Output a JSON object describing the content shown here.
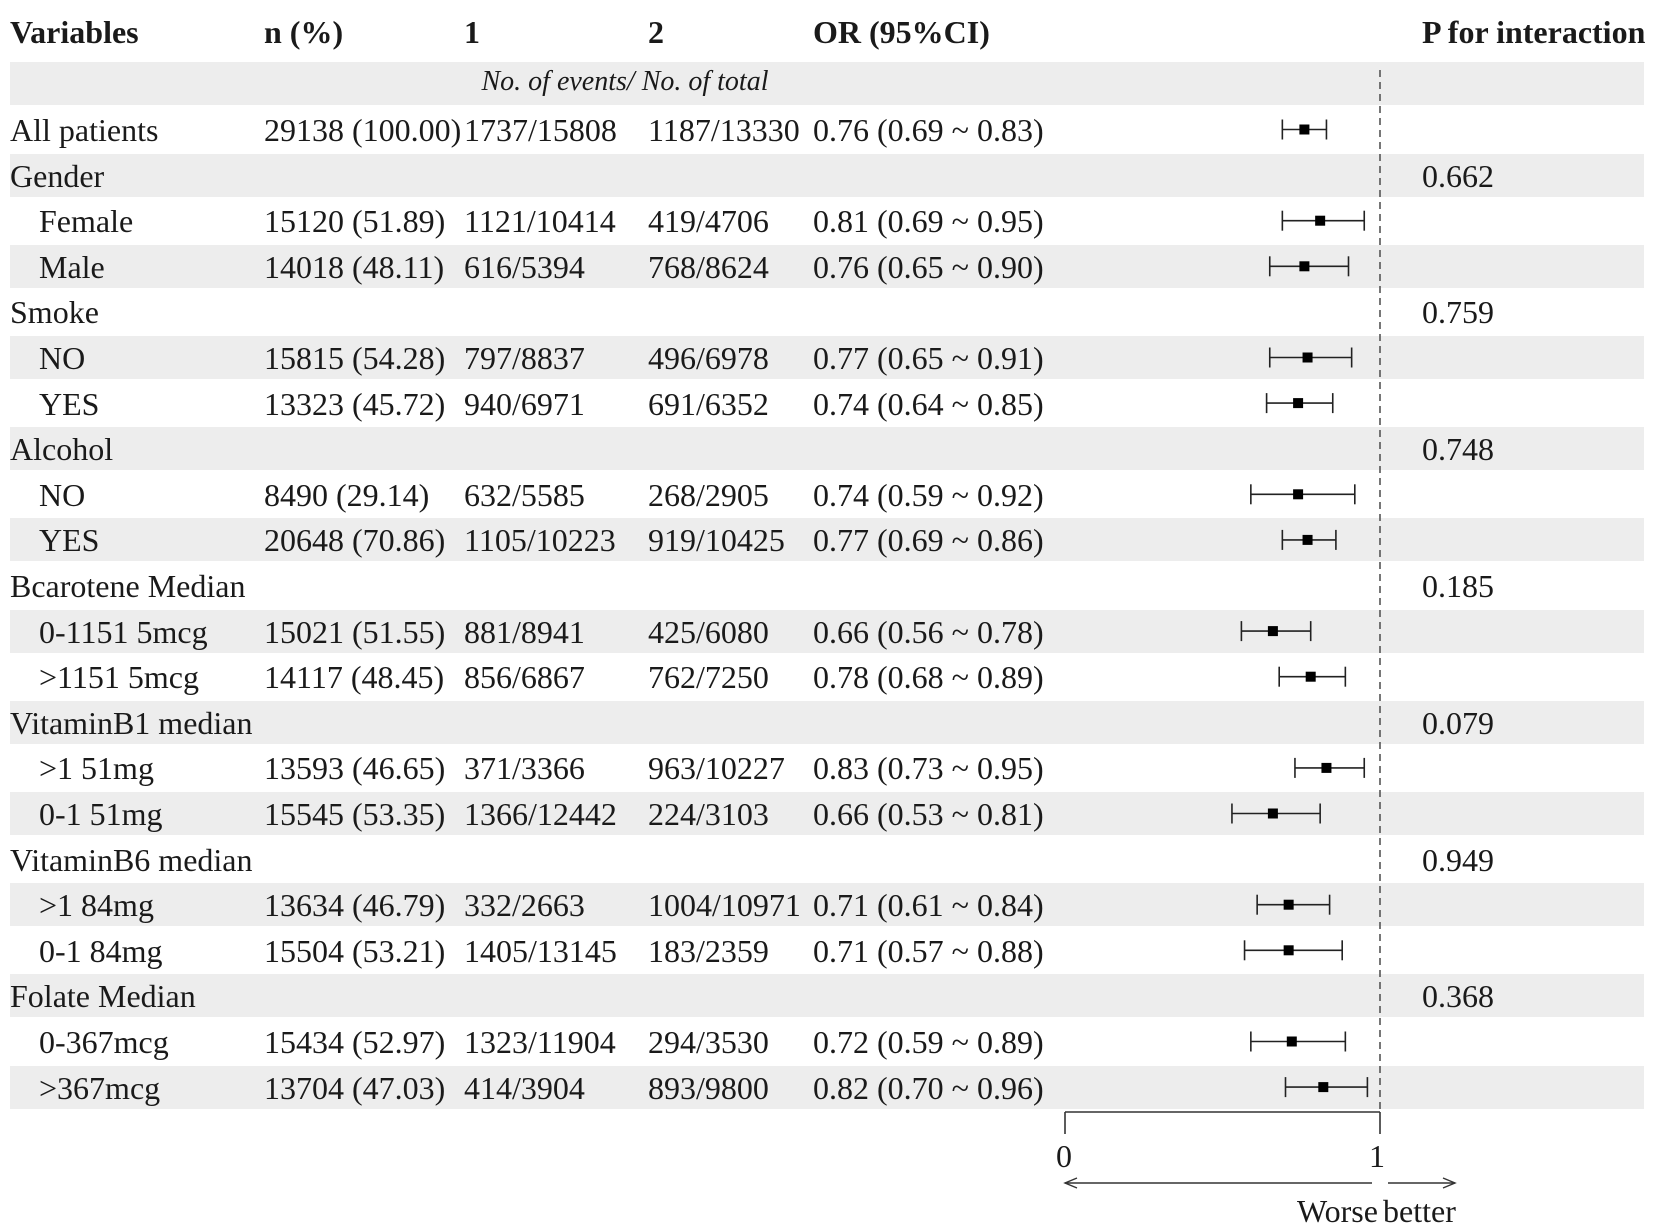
{
  "headers": {
    "variables": "Variables",
    "n_pct": "n (%)",
    "group1": "1",
    "group2": "2",
    "or_ci": "OR (95%CI)",
    "p_interaction": "P for interaction"
  },
  "subheader": "No. of events/ No. of total",
  "rows": [
    {
      "label": "All patients",
      "indent": false,
      "n": "29138 (100.00)",
      "g1": "1737/15808",
      "g2": "1187/13330",
      "or_text": "0.76 (0.69 ~ 0.83)",
      "p": ""
    },
    {
      "label": "Gender",
      "indent": false,
      "n": "",
      "g1": "",
      "g2": "",
      "or_text": "",
      "p": "0.662"
    },
    {
      "label": "Female",
      "indent": true,
      "n": "15120 (51.89)",
      "g1": "1121/10414",
      "g2": "419/4706",
      "or_text": "0.81 (0.69 ~ 0.95)",
      "p": ""
    },
    {
      "label": "Male",
      "indent": true,
      "n": "14018 (48.11)",
      "g1": "616/5394",
      "g2": "768/8624",
      "or_text": "0.76 (0.65 ~ 0.90)",
      "p": ""
    },
    {
      "label": "Smoke",
      "indent": false,
      "n": "",
      "g1": "",
      "g2": "",
      "or_text": "",
      "p": "0.759"
    },
    {
      "label": "NO",
      "indent": true,
      "n": "15815 (54.28)",
      "g1": "797/8837",
      "g2": "496/6978",
      "or_text": "0.77 (0.65 ~ 0.91)",
      "p": ""
    },
    {
      "label": "YES",
      "indent": true,
      "n": "13323 (45.72)",
      "g1": "940/6971",
      "g2": "691/6352",
      "or_text": "0.74 (0.64 ~ 0.85)",
      "p": ""
    },
    {
      "label": "Alcohol",
      "indent": false,
      "n": "",
      "g1": "",
      "g2": "",
      "or_text": "",
      "p": "0.748"
    },
    {
      "label": "NO",
      "indent": true,
      "n": "8490 (29.14)",
      "g1": "632/5585",
      "g2": "268/2905",
      "or_text": "0.74 (0.59 ~ 0.92)",
      "p": ""
    },
    {
      "label": "YES",
      "indent": true,
      "n": "20648 (70.86)",
      "g1": "1105/10223",
      "g2": "919/10425",
      "or_text": "0.77 (0.69 ~ 0.86)",
      "p": ""
    },
    {
      "label": "Bcarotene Median",
      "indent": false,
      "n": "",
      "g1": "",
      "g2": "",
      "or_text": "",
      "p": "0.185"
    },
    {
      "label": "0-1151 5mcg",
      "indent": true,
      "n": "15021 (51.55)",
      "g1": "881/8941",
      "g2": "425/6080",
      "or_text": "0.66 (0.56 ~ 0.78)",
      "p": ""
    },
    {
      "label": ">1151 5mcg",
      "indent": true,
      "n": "14117 (48.45)",
      "g1": "856/6867",
      "g2": "762/7250",
      "or_text": "0.78 (0.68 ~ 0.89)",
      "p": ""
    },
    {
      "label": "VitaminB1 median",
      "indent": false,
      "n": "",
      "g1": "",
      "g2": "",
      "or_text": "",
      "p": "0.079"
    },
    {
      "label": ">1 51mg",
      "indent": true,
      "n": "13593 (46.65)",
      "g1": "371/3366",
      "g2": "963/10227",
      "or_text": "0.83 (0.73 ~ 0.95)",
      "p": ""
    },
    {
      "label": "0-1 51mg",
      "indent": true,
      "n": "15545 (53.35)",
      "g1": "1366/12442",
      "g2": "224/3103",
      "or_text": "0.66 (0.53 ~ 0.81)",
      "p": ""
    },
    {
      "label": "VitaminB6 median",
      "indent": false,
      "n": "",
      "g1": "",
      "g2": "",
      "or_text": "",
      "p": "0.949"
    },
    {
      "label": ">1 84mg",
      "indent": true,
      "n": "13634 (46.79)",
      "g1": "332/2663",
      "g2": "1004/10971",
      "or_text": "0.71 (0.61 ~ 0.84)",
      "p": ""
    },
    {
      "label": "0-1 84mg",
      "indent": true,
      "n": "15504 (53.21)",
      "g1": "1405/13145",
      "g2": "183/2359",
      "or_text": "0.71 (0.57 ~ 0.88)",
      "p": ""
    },
    {
      "label": "Folate Median",
      "indent": false,
      "n": "",
      "g1": "",
      "g2": "",
      "or_text": "",
      "p": "0.368"
    },
    {
      "label": "0-367mcg",
      "indent": true,
      "n": "15434 (52.97)",
      "g1": "1323/11904",
      "g2": "294/3530",
      "or_text": "0.72 (0.59 ~ 0.89)",
      "p": ""
    },
    {
      "label": ">367mcg",
      "indent": true,
      "n": "13704 (47.03)",
      "g1": "414/3904",
      "g2": "893/9800",
      "or_text": "0.82 (0.70 ~ 0.96)",
      "p": ""
    }
  ],
  "chart_data": {
    "type": "forest",
    "xlim": [
      0,
      1
    ],
    "reference_line": 1,
    "x_ticks": [
      "0",
      "1"
    ],
    "direction_labels": {
      "left": "Worse",
      "right": "better"
    },
    "points": [
      {
        "row": 0,
        "or": 0.76,
        "lo": 0.69,
        "hi": 0.83
      },
      {
        "row": 2,
        "or": 0.81,
        "lo": 0.69,
        "hi": 0.95
      },
      {
        "row": 3,
        "or": 0.76,
        "lo": 0.65,
        "hi": 0.9
      },
      {
        "row": 5,
        "or": 0.77,
        "lo": 0.65,
        "hi": 0.91
      },
      {
        "row": 6,
        "or": 0.74,
        "lo": 0.64,
        "hi": 0.85
      },
      {
        "row": 8,
        "or": 0.74,
        "lo": 0.59,
        "hi": 0.92
      },
      {
        "row": 9,
        "or": 0.77,
        "lo": 0.69,
        "hi": 0.86
      },
      {
        "row": 11,
        "or": 0.66,
        "lo": 0.56,
        "hi": 0.78
      },
      {
        "row": 12,
        "or": 0.78,
        "lo": 0.68,
        "hi": 0.89
      },
      {
        "row": 14,
        "or": 0.83,
        "lo": 0.73,
        "hi": 0.95
      },
      {
        "row": 15,
        "or": 0.66,
        "lo": 0.53,
        "hi": 0.81
      },
      {
        "row": 17,
        "or": 0.71,
        "lo": 0.61,
        "hi": 0.84
      },
      {
        "row": 18,
        "or": 0.71,
        "lo": 0.57,
        "hi": 0.88
      },
      {
        "row": 20,
        "or": 0.72,
        "lo": 0.59,
        "hi": 0.89
      },
      {
        "row": 21,
        "or": 0.82,
        "lo": 0.7,
        "hi": 0.96
      }
    ]
  }
}
